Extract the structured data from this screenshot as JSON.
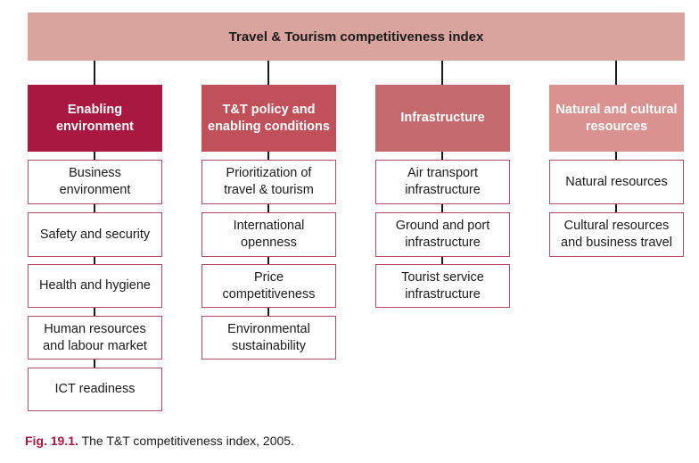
{
  "title": "Travel & Tourism competitiveness index",
  "columns": [
    {
      "header": "Enabling environment",
      "items": [
        "Business environment",
        "Safety and security",
        "Health and hygiene",
        "Human resources and labour market",
        "ICT readiness"
      ]
    },
    {
      "header": "T&T policy and enabling conditions",
      "items": [
        "Prioritization of travel & tourism",
        "International openness",
        "Price competitiveness",
        "Environmental sustainability"
      ]
    },
    {
      "header": "Infrastructure",
      "items": [
        "Air transport infrastructure",
        "Ground and port infrastructure",
        "Tourist service infrastructure"
      ]
    },
    {
      "header": "Natural and cultural resources",
      "items": [
        "Natural resources",
        "Cultural resources and business travel"
      ]
    }
  ],
  "caption": {
    "label": "Fig. 19.1.",
    "text": "The T&T competitiveness index, 2005."
  }
}
